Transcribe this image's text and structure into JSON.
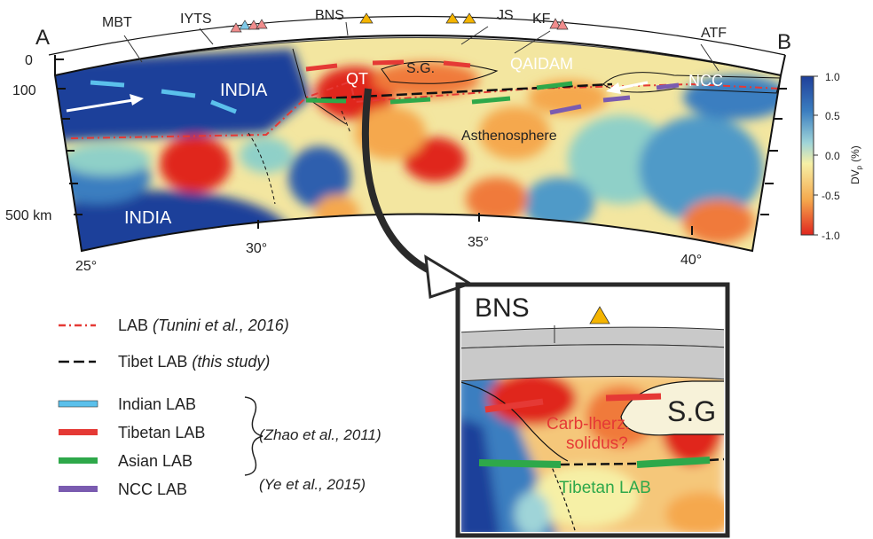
{
  "section": {
    "endpoint_a": "A",
    "endpoint_b": "B",
    "faults": [
      "MBT",
      "IYTS",
      "BNS",
      "JS",
      "KF",
      "ATF"
    ],
    "depth_labels": [
      "0",
      "100",
      "500 km"
    ],
    "lon_labels": [
      "25°",
      "30°",
      "35°",
      "40°"
    ],
    "region_labels": {
      "india_upper": "INDIA",
      "india_lower": "INDIA",
      "qt": "QT",
      "sg": "S.G.",
      "qaidam": "QAIDAM",
      "ncc": "NCC",
      "asthenosphere": "Asthenosphere"
    }
  },
  "colorbar": {
    "tick_labels": [
      "1.0",
      "0.5",
      "0.0",
      "-0.5",
      "-1.0"
    ],
    "unit_label": "DV",
    "unit_sub": "p",
    "unit_suffix": "(%)",
    "colors": [
      "#1f3f9a",
      "#3b7ec0",
      "#9fd4d8",
      "#f6f0a6",
      "#f5a84d",
      "#e0261e"
    ]
  },
  "legend": {
    "items": [
      {
        "label": "LAB",
        "cite": "(Tunini et al., 2016)",
        "color": "#e53935",
        "style": "dashdot"
      },
      {
        "label": "Tibet LAB",
        "cite": "(this study)",
        "color": "#111111",
        "style": "dash"
      },
      {
        "label": "Indian LAB",
        "cite": "",
        "color": "#5bc0eb",
        "style": "bar"
      },
      {
        "label": "Tibetan LAB",
        "cite": "",
        "color": "#e53935",
        "style": "bar"
      },
      {
        "label": "Asian LAB",
        "cite": "",
        "color": "#2ea84a",
        "style": "bar"
      },
      {
        "label": "NCC LAB",
        "cite": "",
        "color": "#7a5bb0",
        "style": "bar"
      }
    ],
    "group_citation": "(Zhao et al., 2011)",
    "ncc_citation": "(Ye et al., 2015)"
  },
  "inset": {
    "title": "BNS",
    "sg": "S.G",
    "carb_line1": "Carb-lherz.",
    "carb_line2": "solidus?",
    "tibetan_lab": "Tibetan LAB"
  }
}
